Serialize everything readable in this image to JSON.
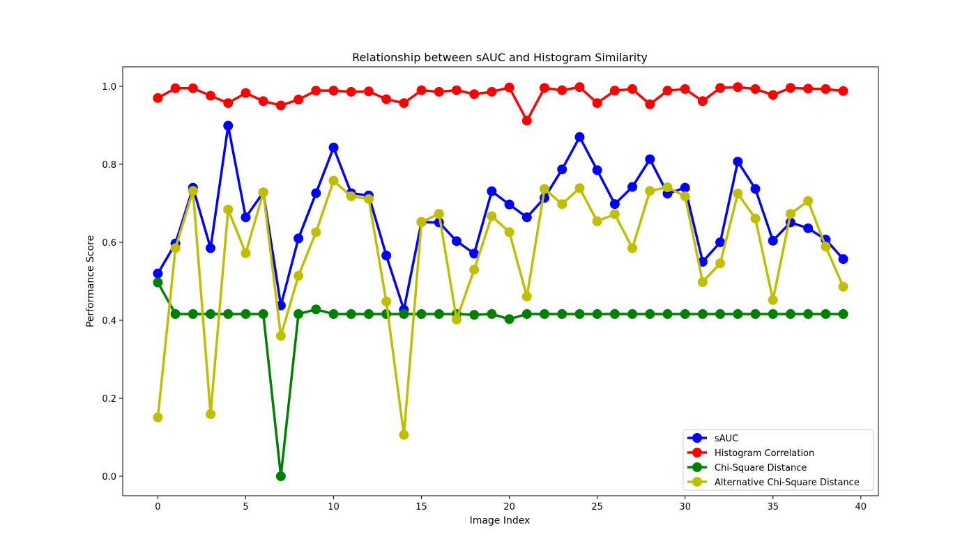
{
  "chart_data": {
    "type": "line",
    "title": "Relationship between sAUC and Histogram Similarity",
    "xlabel": "Image Index",
    "ylabel": "Performance Score",
    "xlim": [
      -2,
      41
    ],
    "ylim": [
      -0.05,
      1.05
    ],
    "xticks": [
      0,
      5,
      10,
      15,
      20,
      25,
      30,
      35,
      40
    ],
    "yticks": [
      0.0,
      0.2,
      0.4,
      0.6,
      0.8,
      1.0
    ],
    "xtick_labels": [
      "0",
      "5",
      "10",
      "15",
      "20",
      "25",
      "30",
      "35",
      "40"
    ],
    "ytick_labels": [
      "0.0",
      "0.2",
      "0.4",
      "0.6",
      "0.8",
      "1.0"
    ],
    "grid": false,
    "legend_position": "bottom-right",
    "x": [
      0,
      1,
      2,
      3,
      4,
      5,
      6,
      7,
      8,
      9,
      10,
      11,
      12,
      13,
      14,
      15,
      16,
      17,
      18,
      19,
      20,
      21,
      22,
      23,
      24,
      25,
      26,
      27,
      28,
      29,
      30,
      31,
      32,
      33,
      34,
      35,
      36,
      37,
      38,
      39
    ],
    "series": [
      {
        "name": "sAUC",
        "color": "#0000ff",
        "values": [
          0.52,
          0.597,
          0.74,
          0.585,
          0.899,
          0.664,
          0.728,
          0.438,
          0.61,
          0.726,
          0.843,
          0.726,
          0.72,
          0.566,
          0.427,
          0.652,
          0.651,
          0.603,
          0.571,
          0.731,
          0.697,
          0.664,
          0.714,
          0.787,
          0.87,
          0.785,
          0.698,
          0.742,
          0.813,
          0.725,
          0.74,
          0.55,
          0.6,
          0.807,
          0.737,
          0.604,
          0.651,
          0.636,
          0.607,
          0.557
        ]
      },
      {
        "name": "Histogram Correlation",
        "color": "#ff0000",
        "values": [
          0.97,
          0.995,
          0.995,
          0.976,
          0.957,
          0.983,
          0.962,
          0.951,
          0.966,
          0.989,
          0.989,
          0.986,
          0.987,
          0.967,
          0.957,
          0.99,
          0.986,
          0.99,
          0.98,
          0.986,
          0.997,
          0.912,
          0.996,
          0.99,
          0.998,
          0.957,
          0.989,
          0.993,
          0.954,
          0.989,
          0.993,
          0.962,
          0.996,
          0.998,
          0.993,
          0.978,
          0.996,
          0.994,
          0.993,
          0.988
        ]
      },
      {
        "name": "Chi-Square Distance",
        "color": "#008000",
        "values": [
          0.497,
          0.416,
          0.416,
          0.416,
          0.416,
          0.416,
          0.416,
          0.0,
          0.416,
          0.428,
          0.416,
          0.416,
          0.416,
          0.416,
          0.416,
          0.416,
          0.416,
          0.416,
          0.414,
          0.416,
          0.403,
          0.416,
          0.416,
          0.416,
          0.416,
          0.416,
          0.416,
          0.416,
          0.416,
          0.416,
          0.416,
          0.416,
          0.416,
          0.416,
          0.416,
          0.416,
          0.416,
          0.416,
          0.416,
          0.416
        ]
      },
      {
        "name": "Alternative Chi-Square Distance",
        "color": "#bfbf00",
        "values": [
          0.151,
          0.585,
          0.732,
          0.159,
          0.684,
          0.572,
          0.728,
          0.36,
          0.514,
          0.626,
          0.758,
          0.718,
          0.711,
          0.448,
          0.106,
          0.652,
          0.673,
          0.402,
          0.53,
          0.667,
          0.626,
          0.461,
          0.737,
          0.698,
          0.739,
          0.654,
          0.672,
          0.585,
          0.732,
          0.741,
          0.718,
          0.498,
          0.546,
          0.725,
          0.661,
          0.452,
          0.673,
          0.706,
          0.589,
          0.486
        ]
      }
    ]
  }
}
